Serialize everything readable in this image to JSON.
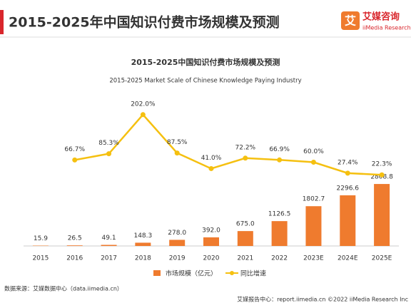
{
  "header": {
    "title": "2015-2025年中国知识付费市场规模及预测",
    "logo": "艾",
    "brand": "艾媒咨询",
    "brand_en": "iiMedia Research"
  },
  "chart_data": {
    "type": "bar_line",
    "title": "2015-2025中国知识付费市场规模及预测",
    "subtitle": "2015-2025 Market Scale of Chinese Knowledge Paying Industry",
    "categories": [
      "2015",
      "2016",
      "2017",
      "2018",
      "2019",
      "2020",
      "2021",
      "2022",
      "2023E",
      "2024E",
      "2025E"
    ],
    "series": [
      {
        "name": "市场规模（亿元）",
        "color": "#ef7b2e",
        "kind": "bar",
        "values": [
          15.9,
          26.5,
          49.1,
          148.3,
          278.0,
          392.0,
          675.0,
          1126.5,
          1802.7,
          2296.6,
          2808.8
        ],
        "value_labels": [
          "15.9",
          "26.5",
          "49.1",
          "148.3",
          "278.0",
          "392.0",
          "675.0",
          "1126.5",
          "1802.7",
          "2296.6",
          "2808.8"
        ]
      },
      {
        "name": "同比增速",
        "color": "#f5c010",
        "kind": "line",
        "axis": "y2",
        "values": [
          null,
          66.7,
          85.3,
          202.0,
          87.5,
          41.0,
          72.2,
          66.9,
          60.0,
          27.4,
          22.3
        ],
        "value_labels": [
          null,
          "66.7%",
          "85.3%",
          "202.0%",
          "87.5%",
          "41.0%",
          "72.2%",
          "66.9%",
          "60.0%",
          "27.4%",
          "22.3%"
        ]
      }
    ],
    "ylim": [
      0,
      6300
    ],
    "y2lim": [
      -190,
      225
    ]
  },
  "footer": {
    "source": "数据来源：艾媒数据中心（data.iimedia.cn）",
    "credit": "艾媒报告中心：report.iimedia.cn  ©2022  iiMedia Research  Inc"
  }
}
